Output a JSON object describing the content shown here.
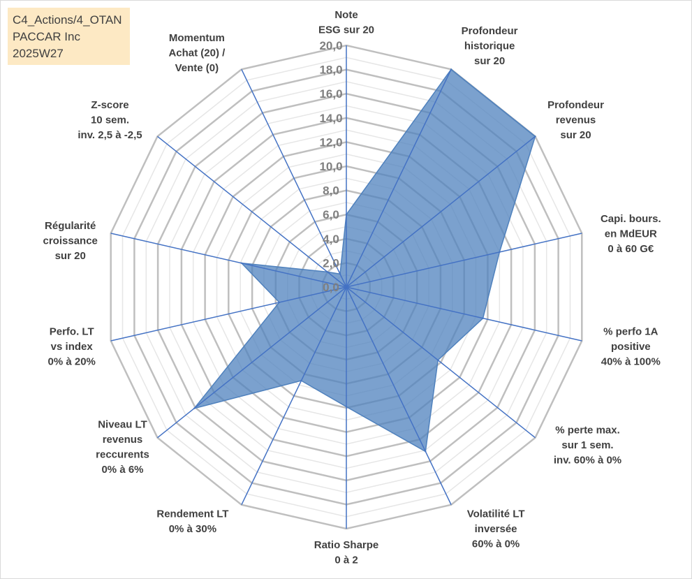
{
  "header": {
    "lines": [
      "C4_Actions/4_OTAN",
      "PACCAR Inc",
      "2025W27"
    ]
  },
  "chart_data": {
    "type": "radar",
    "title": "",
    "rlim": [
      0,
      20
    ],
    "rticks": [
      "0,0",
      "2,0",
      "4,0",
      "6,0",
      "8,0",
      "10,0",
      "12,0",
      "14,0",
      "16,0",
      "18,0",
      "20,0"
    ],
    "grid": true,
    "colors": {
      "fill": "#4f81bd",
      "fill_opacity": 0.75,
      "spoke": "#4472c4",
      "grid": "#bfbfbf",
      "minor_grid": "#e6e6e6"
    },
    "axes": [
      {
        "label": [
          "Note",
          "ESG sur 20"
        ]
      },
      {
        "label": [
          "Profondeur",
          "historique",
          "sur 20"
        ]
      },
      {
        "label": [
          "Profondeur",
          "revenus",
          "sur 20"
        ]
      },
      {
        "label": [
          "Capi. bours.",
          "en MdEUR",
          "0 à 60 G€"
        ]
      },
      {
        "label": [
          "% perfo 1A",
          "positive",
          "40% à 100%"
        ]
      },
      {
        "label": [
          "% perte max.",
          "sur 1 sem.",
          "inv. 60% à 0%"
        ]
      },
      {
        "label": [
          "Volatilité LT",
          "inversée",
          "60% à 0%"
        ]
      },
      {
        "label": [
          "Ratio Sharpe",
          "0 à 2"
        ]
      },
      {
        "label": [
          "Rendement LT",
          "0% à 30%"
        ]
      },
      {
        "label": [
          "Niveau LT",
          "revenus",
          "reccurents",
          "0% à 6%"
        ]
      },
      {
        "label": [
          "Perfo. LT",
          "vs index",
          "0% à 20%"
        ]
      },
      {
        "label": [
          "Régularité",
          "croissance",
          "sur 20"
        ]
      },
      {
        "label": [
          "Z-score",
          "10 sem.",
          "inv. 2,5 à -2,5"
        ]
      },
      {
        "label": [
          "Momentum",
          "Achat (20) /",
          "Vente (0)"
        ]
      }
    ],
    "series": [
      {
        "values": [
          6.0,
          20.0,
          20.0,
          13.0,
          11.6,
          9.7,
          15.1,
          9.9,
          8.6,
          16.1,
          5.7,
          8.9,
          2.0,
          1.2
        ]
      }
    ]
  }
}
